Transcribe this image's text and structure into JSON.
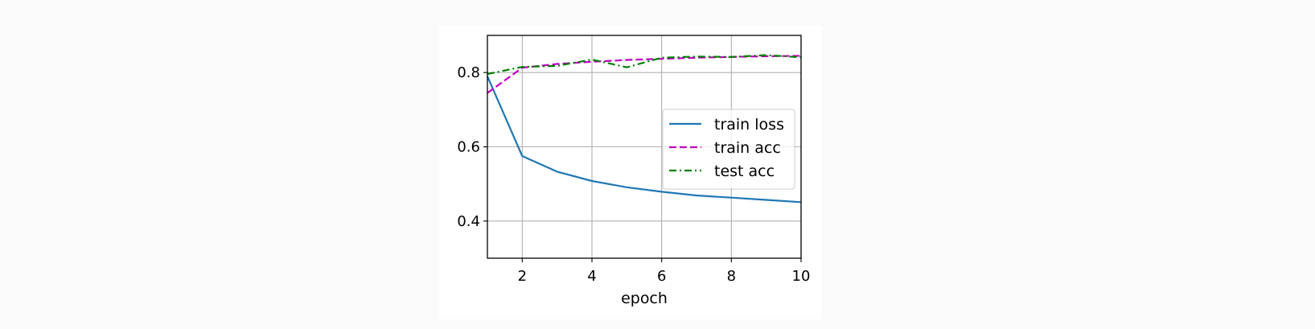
{
  "chart_data": {
    "type": "line",
    "title": "",
    "xlabel": "epoch",
    "ylabel": "",
    "xlim": [
      1,
      10
    ],
    "ylim": [
      0.3,
      0.9
    ],
    "xticks": [
      2,
      4,
      6,
      8,
      10
    ],
    "yticks": [
      0.4,
      0.6,
      0.8
    ],
    "grid": true,
    "legend_position": "center-right",
    "series": [
      {
        "name": "train loss",
        "color": "#1f77b4",
        "linestyle": "solid",
        "x": [
          1,
          2,
          3,
          4,
          5,
          6,
          7,
          8,
          9,
          10
        ],
        "y": [
          0.79,
          0.575,
          0.533,
          0.508,
          0.491,
          0.479,
          0.469,
          0.463,
          0.457,
          0.451
        ]
      },
      {
        "name": "train acc",
        "color": "#bf00bf",
        "linestyle": "dashed",
        "x": [
          1,
          2,
          3,
          4,
          5,
          6,
          7,
          8,
          9,
          10
        ],
        "y": [
          0.745,
          0.813,
          0.823,
          0.829,
          0.834,
          0.837,
          0.84,
          0.842,
          0.844,
          0.845
        ]
      },
      {
        "name": "test acc",
        "color": "#008000",
        "linestyle": "dashdot",
        "x": [
          1,
          2,
          3,
          4,
          5,
          6,
          7,
          8,
          9,
          10
        ],
        "y": [
          0.796,
          0.815,
          0.818,
          0.835,
          0.814,
          0.84,
          0.843,
          0.842,
          0.847,
          0.841
        ]
      }
    ]
  }
}
